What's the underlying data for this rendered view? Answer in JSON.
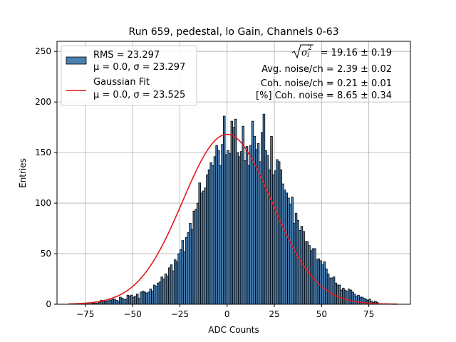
{
  "chart_data": {
    "type": "bar",
    "title": "Run 659, pedestal, lo Gain, Channels 0-63",
    "xlabel": "ADC Counts",
    "ylabel": "Entries",
    "xlim": [
      -90,
      97
    ],
    "ylim": [
      0,
      260
    ],
    "grid": true,
    "legend_placement": "top-left",
    "xticks": [
      -75,
      -50,
      -25,
      0,
      25,
      50,
      75
    ],
    "xtick_labels": [
      "−75",
      "−50",
      "−25",
      "0",
      "25",
      "50",
      "75"
    ],
    "yticks": [
      0,
      50,
      100,
      150,
      200,
      250
    ],
    "ytick_labels": [
      "0",
      "50",
      "100",
      "150",
      "200",
      "250"
    ],
    "colors": {
      "bars": "#4a7fb0",
      "fit": "#e41a1c",
      "grid": "#b0b0b0"
    },
    "histogram": {
      "name_line1": "RMS = 23.297",
      "name_line2": "μ = 0.0, σ = 23.297",
      "bin_width": 1,
      "bin_start": -75,
      "counts": [
        1,
        1,
        0,
        1,
        1,
        1,
        1,
        2,
        4,
        3,
        3,
        3,
        5,
        4,
        5,
        5,
        4,
        3,
        7,
        6,
        5,
        5,
        9,
        8,
        9,
        7,
        8,
        10,
        6,
        12,
        13,
        12,
        11,
        12,
        15,
        13,
        19,
        18,
        21,
        22,
        27,
        25,
        30,
        28,
        36,
        39,
        33,
        44,
        42,
        50,
        54,
        63,
        52,
        66,
        71,
        80,
        74,
        92,
        94,
        100,
        120,
        110,
        112,
        115,
        128,
        133,
        140,
        137,
        146,
        157,
        152,
        137,
        158,
        186,
        148,
        152,
        149,
        181,
        175,
        183,
        150,
        146,
        151,
        176,
        142,
        156,
        137,
        157,
        181,
        166,
        153,
        159,
        141,
        170,
        188,
        152,
        147,
        133,
        166,
        128,
        132,
        143,
        141,
        133,
        119,
        113,
        110,
        105,
        99,
        106,
        80,
        90,
        83,
        73,
        77,
        72,
        62,
        62,
        58,
        53,
        55,
        55,
        44,
        45,
        43,
        39,
        42,
        35,
        30,
        26,
        26,
        27,
        21,
        19,
        19,
        14,
        16,
        14,
        13,
        15,
        14,
        12,
        10,
        8,
        9,
        7,
        7,
        6,
        5,
        4,
        5,
        3,
        2,
        3,
        2
      ]
    },
    "fit": {
      "name_line1": "Gaussian Fit",
      "name_line2": "μ = 0.0, σ = 23.525",
      "mu": 0.0,
      "sigma": 23.525,
      "amplitude": 168,
      "x_range": [
        -84,
        90
      ]
    },
    "annotations": [
      {
        "text_prefix": "",
        "text_value": "= 19.16 ± 0.19"
      },
      {
        "text": "Avg. noise/ch = 2.39 ± 0.02"
      },
      {
        "text": "Coh. noise/ch = 0.21 ± 0.01"
      },
      {
        "text": "[%] Coh. noise = 8.65 ± 0.34"
      }
    ]
  }
}
